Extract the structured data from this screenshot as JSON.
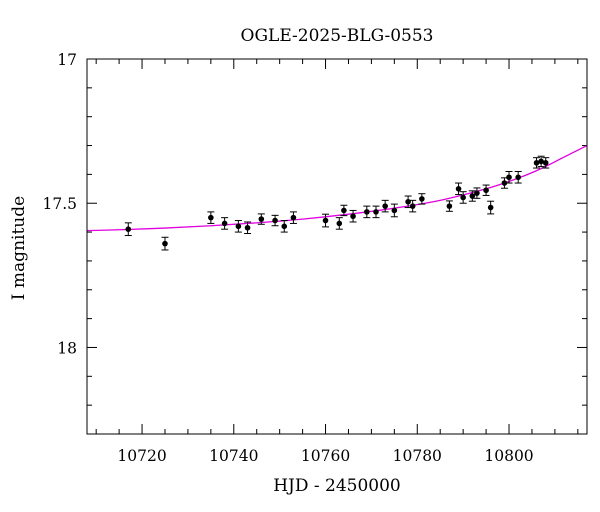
{
  "chart_data": {
    "type": "scatter",
    "title": "OGLE-2025-BLG-0553",
    "xlabel": "HJD - 2450000",
    "ylabel": "I magnitude",
    "xlim": [
      10708,
      10817
    ],
    "ylim": [
      17.0,
      18.3
    ],
    "y_inverted": true,
    "grid": false,
    "legend": "none",
    "x_major_ticks": [
      10720,
      10740,
      10760,
      10780,
      10800
    ],
    "x_minor_step": 5,
    "y_major_ticks": [
      17.0,
      17.5,
      18.0
    ],
    "y_minor_step": 0.1,
    "x_tick_labels": [
      "10720",
      "10740",
      "10760",
      "10780",
      "10800"
    ],
    "y_tick_labels": [
      "17",
      "17.5",
      "18"
    ],
    "colors": {
      "points": "#000000",
      "model": "#e000e0"
    },
    "series": [
      {
        "kind": "points",
        "x": [
          10717,
          10725,
          10735,
          10738,
          10741,
          10743,
          10746,
          10749,
          10751,
          10753,
          10760,
          10763,
          10764,
          10766,
          10769,
          10771,
          10773,
          10775,
          10778,
          10779,
          10781,
          10787,
          10789,
          10790,
          10792,
          10793,
          10795,
          10796,
          10799,
          10800,
          10802,
          10806,
          10807,
          10808
        ],
        "y": [
          17.59,
          17.64,
          17.55,
          17.57,
          17.58,
          17.585,
          17.555,
          17.56,
          17.58,
          17.55,
          17.56,
          17.57,
          17.525,
          17.545,
          17.53,
          17.53,
          17.51,
          17.525,
          17.495,
          17.51,
          17.485,
          17.51,
          17.45,
          17.48,
          17.475,
          17.465,
          17.455,
          17.515,
          17.43,
          17.41,
          17.41,
          17.36,
          17.355,
          17.36
        ],
        "err": [
          0.022,
          0.022,
          0.02,
          0.02,
          0.02,
          0.02,
          0.018,
          0.018,
          0.02,
          0.02,
          0.022,
          0.02,
          0.018,
          0.02,
          0.02,
          0.02,
          0.02,
          0.022,
          0.02,
          0.02,
          0.018,
          0.018,
          0.02,
          0.02,
          0.018,
          0.018,
          0.018,
          0.022,
          0.018,
          0.02,
          0.02,
          0.018,
          0.018,
          0.018
        ]
      },
      {
        "kind": "model",
        "x": [
          10708,
          10715,
          10725,
          10735,
          10745,
          10755,
          10765,
          10775,
          10785,
          10795,
          10802,
          10807,
          10812,
          10817
        ],
        "y": [
          17.595,
          17.592,
          17.586,
          17.578,
          17.568,
          17.555,
          17.538,
          17.517,
          17.49,
          17.45,
          17.413,
          17.38,
          17.34,
          17.3
        ]
      }
    ]
  }
}
